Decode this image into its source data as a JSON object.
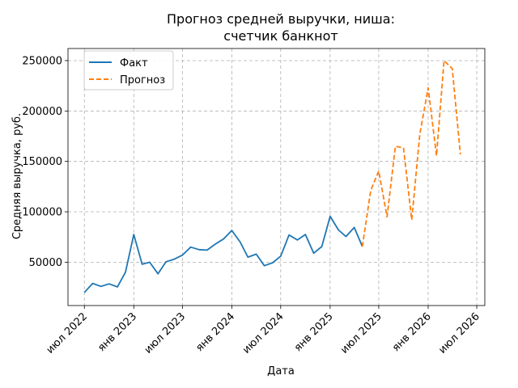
{
  "chart_data": {
    "type": "line",
    "title_line1": "Прогноз средней выручки, ниша:",
    "title_line2": "счетчик банкнот",
    "xlabel": "Дата",
    "ylabel": "Средняя выручка, руб.",
    "grid": true,
    "legend_position": "top-left",
    "x_ticks": [
      "июл 2022",
      "янв 2023",
      "июл 2023",
      "янв 2024",
      "июл 2024",
      "янв 2025",
      "июл 2025",
      "янв 2026",
      "июл 2026"
    ],
    "x_tick_dates": [
      "2022-07-01",
      "2023-01-01",
      "2023-07-01",
      "2024-01-01",
      "2024-07-01",
      "2025-01-01",
      "2025-07-01",
      "2026-01-01",
      "2026-07-01"
    ],
    "y_ticks": [
      50000,
      100000,
      150000,
      200000,
      250000
    ],
    "y_tick_labels": [
      "50000",
      "100000",
      "150000",
      "200000",
      "250000"
    ],
    "xlim": [
      "2022-05-01",
      "2026-07-31"
    ],
    "ylim": [
      7000,
      262000
    ],
    "series": [
      {
        "name": "Факт",
        "color": "#1f77b4",
        "style": "solid",
        "points": [
          [
            "2022-07-01",
            20000
          ],
          [
            "2022-08-01",
            29000
          ],
          [
            "2022-09-01",
            26000
          ],
          [
            "2022-10-01",
            28500
          ],
          [
            "2022-11-01",
            25500
          ],
          [
            "2022-12-01",
            40000
          ],
          [
            "2023-01-01",
            77500
          ],
          [
            "2023-02-01",
            48000
          ],
          [
            "2023-03-01",
            50000
          ],
          [
            "2023-04-01",
            38500
          ],
          [
            "2023-05-01",
            50500
          ],
          [
            "2023-06-01",
            53000
          ],
          [
            "2023-07-01",
            57000
          ],
          [
            "2023-08-01",
            65000
          ],
          [
            "2023-09-01",
            62500
          ],
          [
            "2023-10-01",
            62000
          ],
          [
            "2023-11-01",
            68000
          ],
          [
            "2023-12-01",
            73000
          ],
          [
            "2024-01-01",
            81500
          ],
          [
            "2024-02-01",
            70000
          ],
          [
            "2024-03-01",
            55000
          ],
          [
            "2024-04-01",
            58000
          ],
          [
            "2024-05-01",
            46500
          ],
          [
            "2024-06-01",
            49500
          ],
          [
            "2024-07-01",
            56000
          ],
          [
            "2024-08-01",
            77000
          ],
          [
            "2024-09-01",
            72000
          ],
          [
            "2024-10-01",
            77500
          ],
          [
            "2024-11-01",
            59000
          ],
          [
            "2024-12-01",
            65500
          ],
          [
            "2025-01-01",
            95500
          ],
          [
            "2025-02-01",
            82000
          ],
          [
            "2025-03-01",
            75500
          ],
          [
            "2025-04-01",
            84500
          ],
          [
            "2025-05-01",
            65500
          ]
        ]
      },
      {
        "name": "Прогноз",
        "color": "#ff7f0e",
        "style": "dashed",
        "points": [
          [
            "2025-05-01",
            65500
          ],
          [
            "2025-06-01",
            121000
          ],
          [
            "2025-07-01",
            140500
          ],
          [
            "2025-08-01",
            95000
          ],
          [
            "2025-09-01",
            165000
          ],
          [
            "2025-10-01",
            163500
          ],
          [
            "2025-11-01",
            92000
          ],
          [
            "2025-12-01",
            177000
          ],
          [
            "2026-01-01",
            223000
          ],
          [
            "2026-02-01",
            155500
          ],
          [
            "2026-03-01",
            250000
          ],
          [
            "2026-04-01",
            242000
          ],
          [
            "2026-05-01",
            157000
          ]
        ]
      }
    ]
  }
}
